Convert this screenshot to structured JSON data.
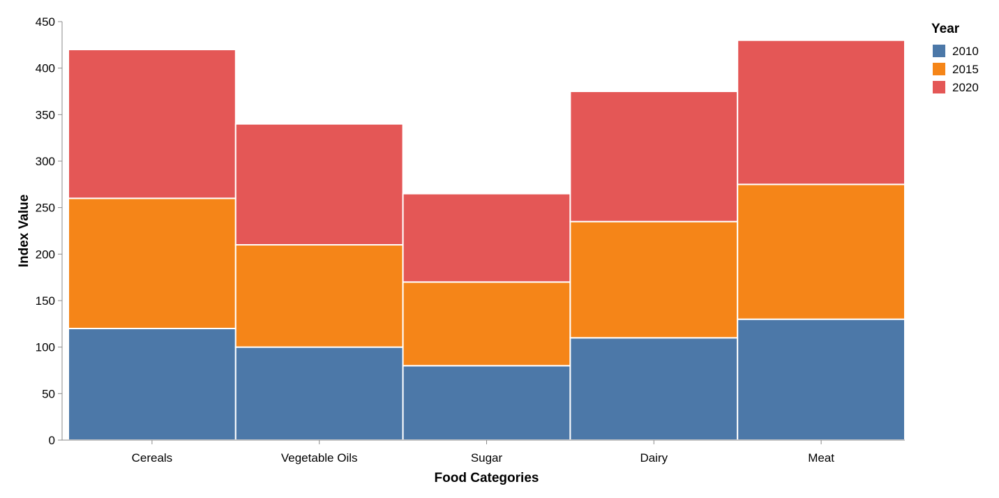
{
  "chart_data": {
    "type": "bar",
    "stacked": true,
    "categories": [
      "Cereals",
      "Vegetable Oils",
      "Sugar",
      "Dairy",
      "Meat"
    ],
    "series": [
      {
        "name": "2010",
        "color": "#4c78a8",
        "values": [
          120,
          100,
          80,
          110,
          130
        ]
      },
      {
        "name": "2015",
        "color": "#f58518",
        "values": [
          140,
          110,
          90,
          125,
          145
        ]
      },
      {
        "name": "2020",
        "color": "#e45756",
        "values": [
          160,
          130,
          95,
          140,
          155
        ]
      }
    ],
    "xlabel": "Food Categories",
    "ylabel": "Index Value",
    "ylim": [
      0,
      450
    ],
    "yticks": [
      0,
      50,
      100,
      150,
      200,
      250,
      300,
      350,
      400,
      450
    ],
    "grid": false,
    "legend": {
      "title": "Year",
      "placement": "top-right"
    }
  }
}
